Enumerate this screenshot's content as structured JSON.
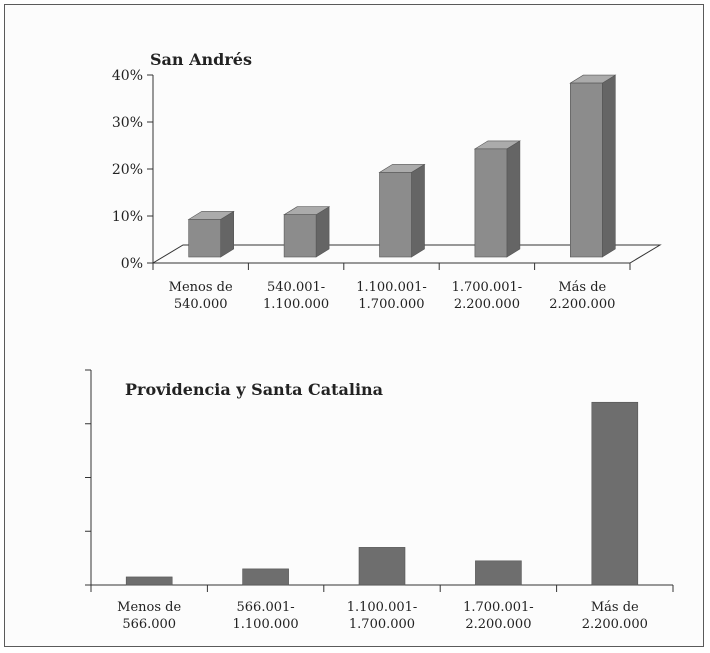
{
  "chart_data": [
    {
      "type": "bar",
      "title": "San Andrés",
      "categories": [
        [
          "Menos de",
          "540.000"
        ],
        [
          "540.001-",
          "1.100.000"
        ],
        [
          "1.100.001-",
          "1.700.000"
        ],
        [
          "1.700.001-",
          "2.200.000"
        ],
        [
          "Más de",
          "2.200.000"
        ]
      ],
      "values": [
        8,
        9,
        18,
        23,
        37
      ],
      "ylim": [
        0,
        40
      ],
      "yticks": [
        "0%",
        "10%",
        "20%",
        "30%",
        "40%"
      ],
      "bar_color": "#8c8c8c",
      "grid": false
    },
    {
      "type": "bar",
      "title": "Providencia y Santa Catalina",
      "categories": [
        [
          "Menos de",
          "566.000"
        ],
        [
          "566.001-",
          "1.100.000"
        ],
        [
          "1.100.001-",
          "1.700.000"
        ],
        [
          "1.700.001-",
          "2.200.000"
        ],
        [
          "Más de",
          "2.200.000"
        ]
      ],
      "values": [
        1.5,
        3,
        7,
        4.5,
        34
      ],
      "ylim": [
        0,
        40
      ],
      "yticks": [],
      "bar_color": "#6e6e6e",
      "grid": false
    }
  ]
}
